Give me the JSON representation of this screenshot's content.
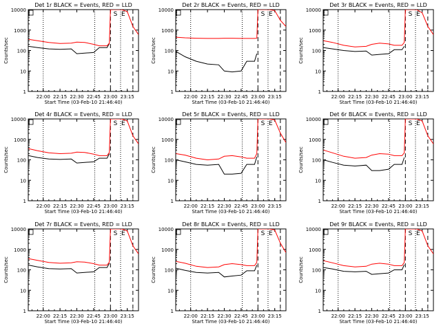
{
  "colors": {
    "events": "#000000",
    "lld": "#ff0000",
    "background": "#ffffff",
    "axes": "#000000"
  },
  "common": {
    "ylabel": "Counts/sec",
    "xlabel": "Start Time (03-Feb-10 21:46:40)",
    "x_ticks": [
      "22:00",
      "22:15",
      "22:30",
      "22:45",
      "23:00",
      "23:15"
    ],
    "y_ticks": [
      "1",
      "10",
      "100",
      "1000",
      "10000"
    ],
    "markers": [
      "S",
      "E"
    ]
  },
  "chart_data": [
    {
      "type": "line",
      "title": "Det 1r BLACK = Events, RED = LLD",
      "yscale": "log",
      "ylim": [
        1,
        10000
      ],
      "xlim": [
        "21:46:40",
        "23:25"
      ],
      "series": [
        {
          "name": "Events",
          "color": "#000000",
          "x": [
            "21:47",
            "21:55",
            "22:05",
            "22:15",
            "22:25",
            "22:30",
            "22:37",
            "22:45",
            "22:50",
            "22:57",
            "22:59",
            "23:00",
            "23:05",
            "23:10",
            "23:15",
            "23:20",
            "23:25"
          ],
          "y": [
            160,
            140,
            120,
            115,
            120,
            70,
            75,
            80,
            140,
            140,
            220,
            null,
            null,
            null,
            null,
            null,
            null
          ]
        },
        {
          "name": "LLD",
          "color": "#ff0000",
          "x": [
            "21:47",
            "21:55",
            "22:05",
            "22:15",
            "22:25",
            "22:30",
            "22:37",
            "22:45",
            "22:50",
            "22:57",
            "22:59",
            "23:00",
            "23:05",
            "23:10",
            "23:15",
            "23:20",
            "23:25"
          ],
          "y": [
            350,
            300,
            250,
            220,
            230,
            260,
            250,
            200,
            170,
            170,
            230,
            10000,
            10000,
            10000,
            8000,
            1500,
            600
          ]
        }
      ]
    },
    {
      "type": "line",
      "title": "Det 2r BLACK = Events, RED = LLD",
      "yscale": "log",
      "ylim": [
        1,
        10000
      ],
      "xlim": [
        "21:46:40",
        "23:25"
      ],
      "series": [
        {
          "name": "Events",
          "color": "#000000",
          "x": [
            "21:47",
            "21:55",
            "22:05",
            "22:15",
            "22:25",
            "22:30",
            "22:37",
            "22:45",
            "22:50",
            "22:57",
            "22:59",
            "23:00",
            "23:05",
            "23:10",
            "23:15",
            "23:20",
            "23:25"
          ],
          "y": [
            90,
            50,
            30,
            22,
            20,
            10,
            9,
            10,
            30,
            30,
            70,
            null,
            null,
            null,
            null,
            null,
            null
          ]
        },
        {
          "name": "LLD",
          "color": "#ff0000",
          "x": [
            "21:47",
            "21:55",
            "22:05",
            "22:15",
            "22:25",
            "22:30",
            "22:37",
            "22:45",
            "22:50",
            "22:57",
            "22:59",
            "23:00",
            "23:05",
            "23:10",
            "23:15",
            "23:20",
            "23:25"
          ],
          "y": [
            450,
            420,
            400,
            390,
            390,
            400,
            400,
            390,
            390,
            390,
            400,
            10000,
            10000,
            10000,
            9000,
            3000,
            1500
          ]
        }
      ]
    },
    {
      "type": "line",
      "title": "Det 3r BLACK = Events, RED = LLD",
      "yscale": "log",
      "ylim": [
        1,
        10000
      ],
      "xlim": [
        "21:46:40",
        "23:25"
      ],
      "series": [
        {
          "name": "Events",
          "color": "#000000",
          "x": [
            "21:47",
            "21:55",
            "22:05",
            "22:15",
            "22:25",
            "22:30",
            "22:37",
            "22:45",
            "22:50",
            "22:57",
            "22:59",
            "23:00",
            "23:05",
            "23:10",
            "23:15",
            "23:20",
            "23:25"
          ],
          "y": [
            140,
            120,
            100,
            90,
            95,
            60,
            65,
            70,
            110,
            110,
            160,
            null,
            null,
            null,
            null,
            null,
            null
          ]
        },
        {
          "name": "LLD",
          "color": "#ff0000",
          "x": [
            "21:47",
            "21:55",
            "22:05",
            "22:15",
            "22:25",
            "22:30",
            "22:37",
            "22:45",
            "22:50",
            "22:57",
            "22:59",
            "23:00",
            "23:05",
            "23:10",
            "23:15",
            "23:20",
            "23:25"
          ],
          "y": [
            300,
            250,
            180,
            150,
            160,
            200,
            230,
            210,
            180,
            180,
            250,
            10000,
            10000,
            10000,
            7000,
            1500,
            600
          ]
        }
      ]
    },
    {
      "type": "line",
      "title": "Det 4r BLACK = Events, RED = LLD",
      "yscale": "log",
      "ylim": [
        1,
        10000
      ],
      "xlim": [
        "21:46:40",
        "23:25"
      ],
      "series": [
        {
          "name": "Events",
          "color": "#000000",
          "x": [
            "21:47",
            "21:55",
            "22:05",
            "22:15",
            "22:25",
            "22:30",
            "22:37",
            "22:45",
            "22:50",
            "22:57",
            "22:59",
            "23:00",
            "23:05",
            "23:10",
            "23:15",
            "23:20",
            "23:25"
          ],
          "y": [
            160,
            130,
            110,
            105,
            110,
            70,
            75,
            80,
            120,
            120,
            200,
            null,
            null,
            null,
            null,
            null,
            null
          ]
        },
        {
          "name": "LLD",
          "color": "#ff0000",
          "x": [
            "21:47",
            "21:55",
            "22:05",
            "22:15",
            "22:25",
            "22:30",
            "22:37",
            "22:45",
            "22:50",
            "22:57",
            "22:59",
            "23:00",
            "23:05",
            "23:10",
            "23:15",
            "23:20",
            "23:25"
          ],
          "y": [
            350,
            280,
            220,
            200,
            210,
            240,
            230,
            190,
            160,
            160,
            230,
            10000,
            10000,
            10000,
            8000,
            1500,
            600
          ]
        }
      ]
    },
    {
      "type": "line",
      "title": "Det 5r BLACK = Events, RED = LLD",
      "yscale": "log",
      "ylim": [
        1,
        10000
      ],
      "xlim": [
        "21:46:40",
        "23:25"
      ],
      "series": [
        {
          "name": "Events",
          "color": "#000000",
          "x": [
            "21:47",
            "21:55",
            "22:05",
            "22:15",
            "22:25",
            "22:30",
            "22:37",
            "22:45",
            "22:50",
            "22:57",
            "22:59",
            "23:00",
            "23:05",
            "23:10",
            "23:15",
            "23:20",
            "23:25"
          ],
          "y": [
            100,
            80,
            60,
            55,
            60,
            20,
            20,
            22,
            60,
            60,
            140,
            null,
            null,
            null,
            null,
            null,
            null
          ]
        },
        {
          "name": "LLD",
          "color": "#ff0000",
          "x": [
            "21:47",
            "21:55",
            "22:05",
            "22:15",
            "22:25",
            "22:30",
            "22:37",
            "22:45",
            "22:50",
            "22:57",
            "22:59",
            "23:00",
            "23:05",
            "23:10",
            "23:15",
            "23:20",
            "23:25"
          ],
          "y": [
            200,
            170,
            120,
            100,
            110,
            150,
            160,
            140,
            120,
            120,
            200,
            10000,
            10000,
            10000,
            9000,
            2000,
            700
          ]
        }
      ]
    },
    {
      "type": "line",
      "title": "Det 6r BLACK = Events, RED = LLD",
      "yscale": "log",
      "ylim": [
        1,
        10000
      ],
      "xlim": [
        "21:46:40",
        "23:25"
      ],
      "series": [
        {
          "name": "Events",
          "color": "#000000",
          "x": [
            "21:47",
            "21:55",
            "22:05",
            "22:15",
            "22:25",
            "22:30",
            "22:37",
            "22:45",
            "22:50",
            "22:57",
            "22:59",
            "23:00",
            "23:05",
            "23:10",
            "23:15",
            "23:20",
            "23:25"
          ],
          "y": [
            100,
            75,
            55,
            50,
            55,
            30,
            30,
            35,
            60,
            60,
            130,
            null,
            null,
            null,
            null,
            null,
            null
          ]
        },
        {
          "name": "LLD",
          "color": "#ff0000",
          "x": [
            "21:47",
            "21:55",
            "22:05",
            "22:15",
            "22:25",
            "22:30",
            "22:37",
            "22:45",
            "22:50",
            "22:57",
            "22:59",
            "23:00",
            "23:05",
            "23:10",
            "23:15",
            "23:20",
            "23:25"
          ],
          "y": [
            300,
            220,
            150,
            120,
            130,
            170,
            200,
            190,
            160,
            160,
            220,
            10000,
            10000,
            10000,
            8000,
            1500,
            600
          ]
        }
      ]
    },
    {
      "type": "line",
      "title": "Det 7r BLACK = Events, RED = LLD",
      "yscale": "log",
      "ylim": [
        1,
        10000
      ],
      "xlim": [
        "21:46:40",
        "23:25"
      ],
      "series": [
        {
          "name": "Events",
          "color": "#000000",
          "x": [
            "21:47",
            "21:55",
            "22:05",
            "22:15",
            "22:25",
            "22:30",
            "22:37",
            "22:45",
            "22:50",
            "22:57",
            "22:59",
            "23:00",
            "23:05",
            "23:10",
            "23:15",
            "23:20",
            "23:25"
          ],
          "y": [
            170,
            140,
            115,
            110,
            115,
            70,
            75,
            80,
            130,
            130,
            210,
            null,
            null,
            null,
            null,
            null,
            null
          ]
        },
        {
          "name": "LLD",
          "color": "#ff0000",
          "x": [
            "21:47",
            "21:55",
            "22:05",
            "22:15",
            "22:25",
            "22:30",
            "22:37",
            "22:45",
            "22:50",
            "22:57",
            "22:59",
            "23:00",
            "23:05",
            "23:10",
            "23:15",
            "23:20",
            "23:25"
          ],
          "y": [
            350,
            290,
            230,
            210,
            220,
            250,
            240,
            200,
            170,
            170,
            240,
            10000,
            10000,
            10000,
            8000,
            1500,
            600
          ]
        }
      ]
    },
    {
      "type": "line",
      "title": "Det 8r BLACK = Events, RED = LLD",
      "yscale": "log",
      "ylim": [
        1,
        10000
      ],
      "xlim": [
        "21:46:40",
        "23:25"
      ],
      "series": [
        {
          "name": "Events",
          "color": "#000000",
          "x": [
            "21:47",
            "21:55",
            "22:05",
            "22:15",
            "22:25",
            "22:30",
            "22:37",
            "22:45",
            "22:50",
            "22:57",
            "22:59",
            "23:00",
            "23:05",
            "23:10",
            "23:15",
            "23:20",
            "23:25"
          ],
          "y": [
            120,
            95,
            75,
            70,
            75,
            45,
            50,
            55,
            90,
            90,
            170,
            null,
            null,
            null,
            null,
            null,
            null
          ]
        },
        {
          "name": "LLD",
          "color": "#ff0000",
          "x": [
            "21:47",
            "21:55",
            "22:05",
            "22:15",
            "22:25",
            "22:30",
            "22:37",
            "22:45",
            "22:50",
            "22:57",
            "22:59",
            "23:00",
            "23:05",
            "23:10",
            "23:15",
            "23:20",
            "23:25"
          ],
          "y": [
            260,
            210,
            150,
            130,
            140,
            180,
            200,
            180,
            160,
            160,
            230,
            10000,
            10000,
            10000,
            9000,
            2000,
            700
          ]
        }
      ]
    },
    {
      "type": "line",
      "title": "Det 9r BLACK = Events, RED = LLD",
      "yscale": "log",
      "ylim": [
        1,
        10000
      ],
      "xlim": [
        "21:46:40",
        "23:25"
      ],
      "series": [
        {
          "name": "Events",
          "color": "#000000",
          "x": [
            "21:47",
            "21:55",
            "22:05",
            "22:15",
            "22:25",
            "22:30",
            "22:37",
            "22:45",
            "22:50",
            "22:57",
            "22:59",
            "23:00",
            "23:05",
            "23:10",
            "23:15",
            "23:20",
            "23:25"
          ],
          "y": [
            130,
            110,
            85,
            80,
            85,
            60,
            65,
            70,
            100,
            100,
            180,
            null,
            null,
            null,
            null,
            null,
            null
          ]
        },
        {
          "name": "LLD",
          "color": "#ff0000",
          "x": [
            "21:47",
            "21:55",
            "22:05",
            "22:15",
            "22:25",
            "22:30",
            "22:37",
            "22:45",
            "22:50",
            "22:57",
            "22:59",
            "23:00",
            "23:05",
            "23:10",
            "23:15",
            "23:20",
            "23:25"
          ],
          "y": [
            280,
            220,
            160,
            140,
            150,
            190,
            210,
            190,
            160,
            160,
            230,
            10000,
            10000,
            10000,
            8000,
            1500,
            600
          ]
        }
      ]
    }
  ]
}
